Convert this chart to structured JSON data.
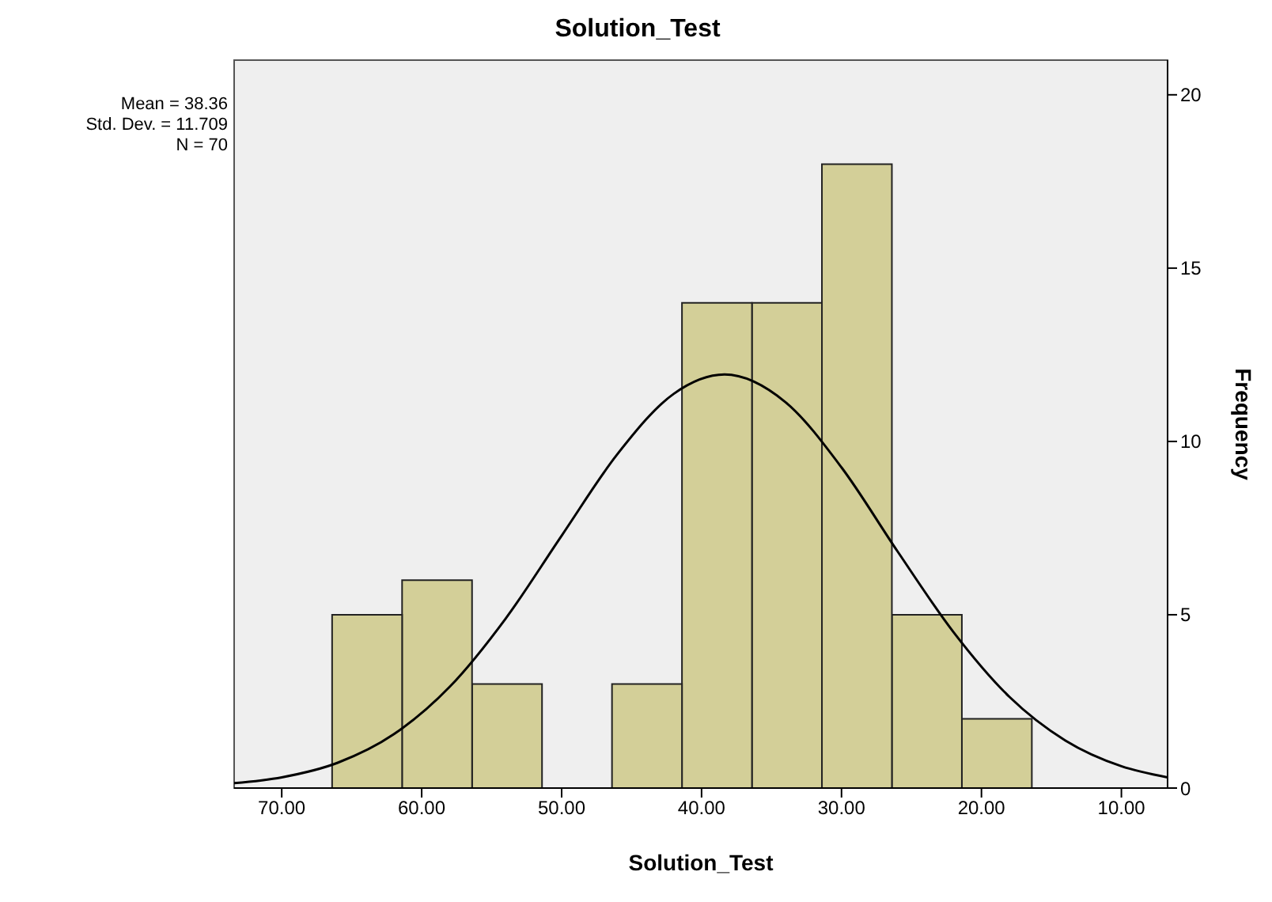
{
  "chart_data": {
    "type": "histogram",
    "title": "Solution_Test",
    "xlabel": "Solution_Test",
    "ylabel": "Frequency",
    "annotations": [
      "Mean = 38.36",
      "Std. Dev. = 11.709",
      "N = 70"
    ],
    "bins": [
      16.4,
      21.4,
      26.4,
      31.4,
      36.4,
      41.4,
      46.4,
      51.4,
      56.4,
      61.4,
      66.4
    ],
    "values": [
      2,
      5,
      18,
      14,
      14,
      3,
      0,
      3,
      6,
      5
    ],
    "color": "#d3cf98",
    "series": [
      {
        "type": "line",
        "color": "#000000",
        "x": [
          6.7,
          10,
          14,
          18,
          22,
          26,
          30,
          34,
          38.36,
          42,
          46,
          50,
          54,
          58,
          62,
          66,
          70,
          73.4
        ],
        "values": [
          0.31,
          0.63,
          1.37,
          2.63,
          4.5,
          6.83,
          9.25,
          11.13,
          11.93,
          11.37,
          9.64,
          7.28,
          4.89,
          2.92,
          1.55,
          0.73,
          0.31,
          0.14
        ]
      }
    ],
    "xlim": [
      73.4,
      6.7
    ],
    "xticks": [
      {
        "value": 70,
        "label": "70.00"
      },
      {
        "value": 60,
        "label": "60.00"
      },
      {
        "value": 50,
        "label": "50.00"
      },
      {
        "value": 40,
        "label": "40.00"
      },
      {
        "value": 30,
        "label": "30.00"
      },
      {
        "value": 20,
        "label": "20.00"
      },
      {
        "value": 10,
        "label": "10.00"
      }
    ],
    "ylim": [
      0,
      21
    ],
    "yticks": [
      0,
      5,
      10,
      15,
      20
    ],
    "marker": "none",
    "line_style": "solid"
  }
}
